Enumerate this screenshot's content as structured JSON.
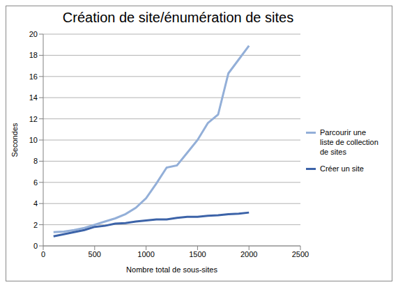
{
  "chart_data": {
    "type": "line",
    "title": "Création de site/énumération de sites",
    "x_label": "Nombre total de sous-sites",
    "y_label": "Secondes",
    "x": [
      100,
      200,
      300,
      400,
      500,
      600,
      700,
      800,
      900,
      1000,
      1100,
      1200,
      1300,
      1400,
      1500,
      1600,
      1700,
      1800,
      1900,
      2000
    ],
    "series": [
      {
        "name": "Parcourir une liste de collection de sites",
        "color": "#93afd8",
        "values": [
          1.3,
          1.35,
          1.5,
          1.7,
          2.0,
          2.3,
          2.6,
          3.0,
          3.6,
          4.5,
          5.9,
          7.4,
          7.6,
          8.8,
          10.0,
          11.6,
          12.4,
          16.3,
          17.6,
          18.9
        ]
      },
      {
        "name": "Créer un site",
        "color": "#3c63a8",
        "values": [
          0.9,
          1.1,
          1.3,
          1.5,
          1.8,
          1.9,
          2.1,
          2.15,
          2.3,
          2.4,
          2.5,
          2.5,
          2.65,
          2.75,
          2.75,
          2.85,
          2.9,
          3.0,
          3.05,
          3.15
        ]
      }
    ],
    "xlim": [
      0,
      2500
    ],
    "xticks": [
      0,
      500,
      1000,
      1500,
      2000,
      2500
    ],
    "ylim": [
      0,
      20
    ],
    "yticks": [
      0,
      2,
      4,
      6,
      8,
      10,
      12,
      14,
      16,
      18,
      20
    ],
    "grid": true,
    "legend": "right"
  }
}
